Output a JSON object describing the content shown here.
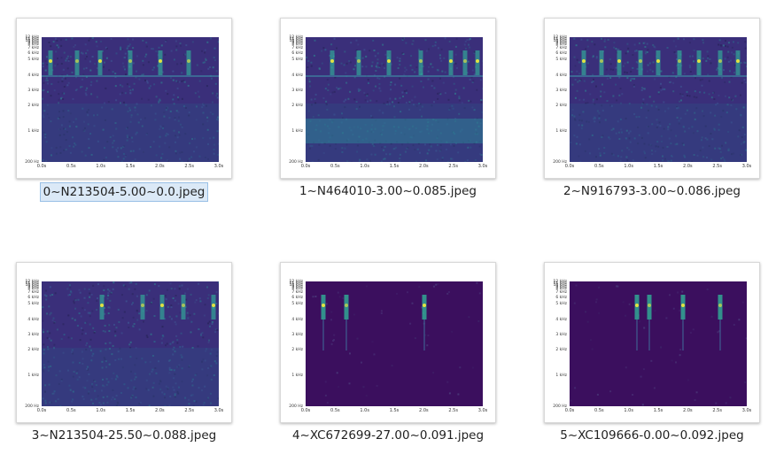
{
  "files": [
    {
      "name": "0~N213504-5.00~0.0.jpeg",
      "selected": true,
      "calls": [
        0.05,
        0.2,
        0.33,
        0.5,
        0.67,
        0.83
      ],
      "noise": "high",
      "band": true,
      "lowband": false
    },
    {
      "name": "1~N464010-3.00~0.085.jpeg",
      "selected": false,
      "calls": [
        0.15,
        0.3,
        0.47,
        0.65,
        0.82,
        0.9,
        0.97
      ],
      "noise": "high",
      "band": true,
      "lowband": true
    },
    {
      "name": "2~N916793-3.00~0.086.jpeg",
      "selected": false,
      "calls": [
        0.08,
        0.18,
        0.28,
        0.4,
        0.5,
        0.62,
        0.73,
        0.85,
        0.95
      ],
      "noise": "high",
      "band": true,
      "lowband": false
    },
    {
      "name": "3~N213504-25.50~0.088.jpeg",
      "selected": false,
      "calls": [
        0.34,
        0.57,
        0.68,
        0.8,
        0.97
      ],
      "noise": "high",
      "band": false,
      "lowband": false
    },
    {
      "name": "4~XC672699-27.00~0.091.jpeg",
      "selected": false,
      "calls": [
        0.1,
        0.23,
        0.67
      ],
      "noise": "low",
      "band": false,
      "lowband": false
    },
    {
      "name": "5~XC109666-0.00~0.092.jpeg",
      "selected": false,
      "calls": [
        0.38,
        0.45,
        0.64,
        0.85
      ],
      "noise": "low",
      "band": false,
      "lowband": false
    }
  ],
  "axis": {
    "y_ticks": [
      "12 kHz",
      "11 kHz",
      "10 kHz",
      "9 kHz",
      "8 kHz",
      "7 kHz",
      "6 kHz",
      "5 kHz",
      "4 kHz",
      "3 kHz",
      "2 kHz",
      "1 kHz",
      "200 Hz"
    ],
    "x_ticks": [
      "0.0s",
      "0.5s",
      "1.0s",
      "1.5s",
      "2.0s",
      "2.5s",
      "3.0s"
    ]
  },
  "colors": {
    "background_high": "#3a2f7a",
    "background_low": "#3b0f5e",
    "call": "#2fc7a0",
    "peak": "#f5ec3a"
  }
}
